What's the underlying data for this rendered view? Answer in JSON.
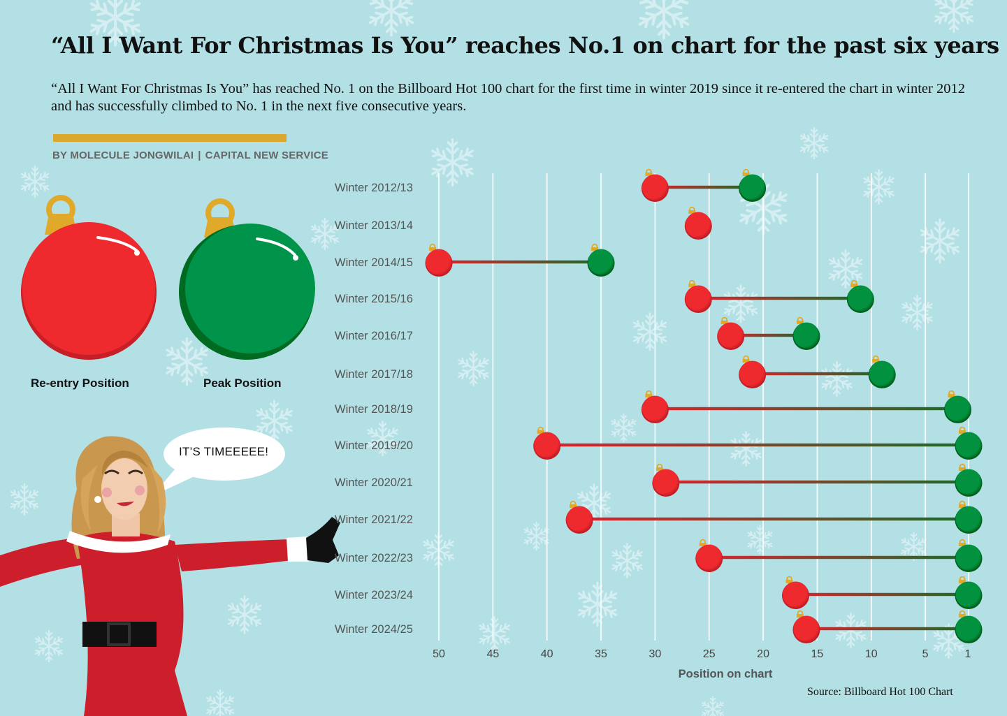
{
  "header": {
    "title": "“All I Want For Christmas Is You” reaches No.1 on chart for the past six years",
    "subtitle": "“All I Want For Christmas Is You” has reached No. 1 on the Billboard Hot 100 chart for the first time in winter 2019 since it re-entered the chart in winter 2012 and has successfully climbed to No. 1 in the next five consecutive years.",
    "author": "BY MOLECULE JONGWILAI",
    "separator": "|",
    "outlet": "CAPITAL NEW SERVICE"
  },
  "legend": {
    "reentry_label": "Re-entry Position",
    "peak_label": "Peak Position"
  },
  "speech_bubble": "IT’S TIMEEEEE!",
  "source": "Source: Billboard Hot 100 Chart",
  "colors": {
    "background": "#b3e0e5",
    "reentry": "#e8262c",
    "peak": "#008c3c",
    "accent": "#dba72c",
    "ornament_cap": "#e0a92a"
  },
  "chart_data": {
    "type": "dumbbell",
    "xlabel": "Position on chart",
    "x_ticks": [
      50,
      45,
      40,
      35,
      30,
      25,
      20,
      15,
      10,
      5,
      1
    ],
    "xlim": [
      51,
      1
    ],
    "x_reversed": true,
    "grid": "vertical",
    "categories": [
      "Winter 2012/13",
      "Winter 2013/14",
      "Winter 2014/15",
      "Winter 2015/16",
      "Winter 2016/17",
      "Winter 2017/18",
      "Winter 2018/19",
      "Winter 2019/20",
      "Winter 2020/21",
      "Winter 2021/22",
      "Winter 2022/23",
      "Winter 2023/24",
      "Winter 2024/25"
    ],
    "series": [
      {
        "name": "Re-entry Position",
        "values": [
          30,
          26,
          50,
          26,
          23,
          21,
          30,
          40,
          29,
          37,
          25,
          17,
          16
        ]
      },
      {
        "name": "Peak Position",
        "values": [
          21,
          26,
          35,
          11,
          16,
          9,
          2,
          1,
          1,
          1,
          1,
          1,
          1
        ]
      }
    ]
  }
}
